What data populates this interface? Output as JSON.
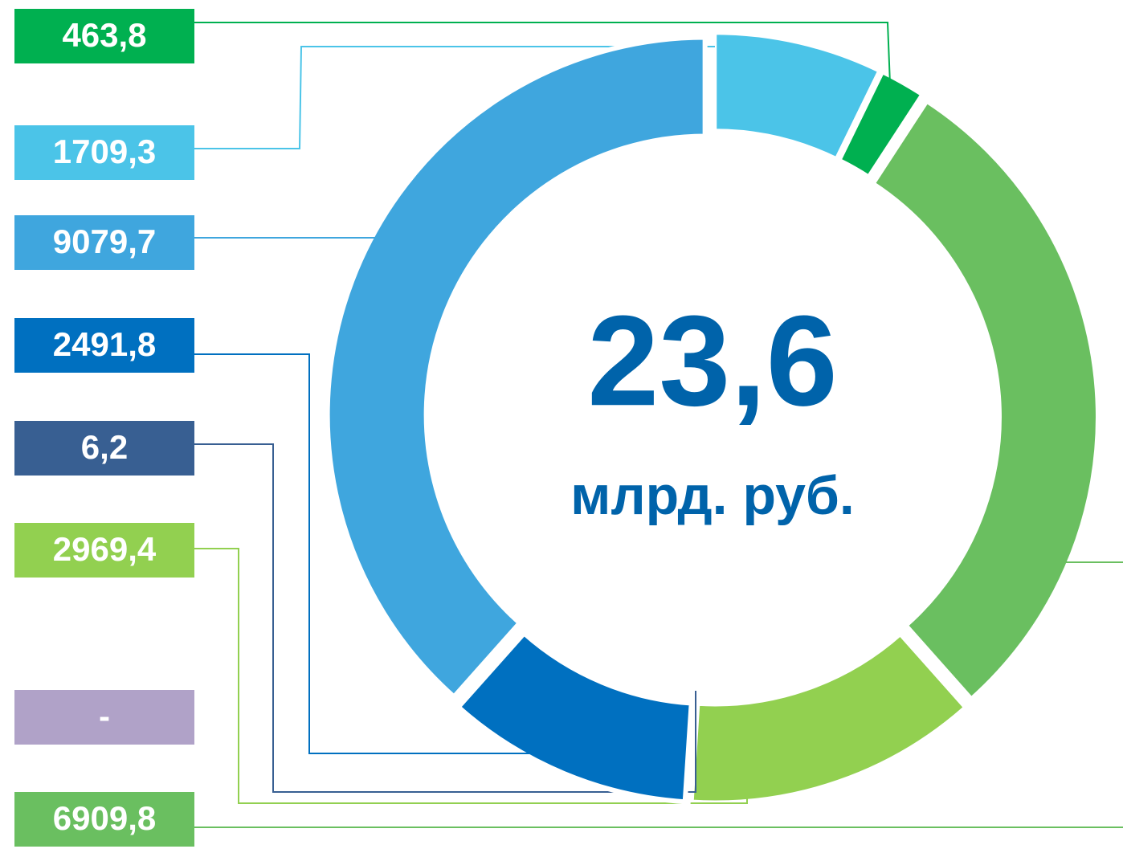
{
  "chart_data": {
    "type": "pie",
    "donut": true,
    "center_text": "23,6",
    "center_unit": "млрд. руб.",
    "categories": [
      null,
      null,
      null,
      null,
      null,
      null,
      null,
      null
    ],
    "values": [
      1709.3,
      463.8,
      6909.8,
      2969.4,
      null,
      6.2,
      2491.8,
      9079.7
    ],
    "value_labels": [
      "1709,3",
      "463,8",
      "6909,8",
      "2969,4",
      "-",
      "6,2",
      "2491,8",
      "9079,7"
    ],
    "colors": [
      "#4bc4e8",
      "#00b050",
      "#6abf60",
      "#92d050",
      "#b0a2c8",
      "#385f92",
      "#0070c0",
      "#3fa6de"
    ]
  }
}
